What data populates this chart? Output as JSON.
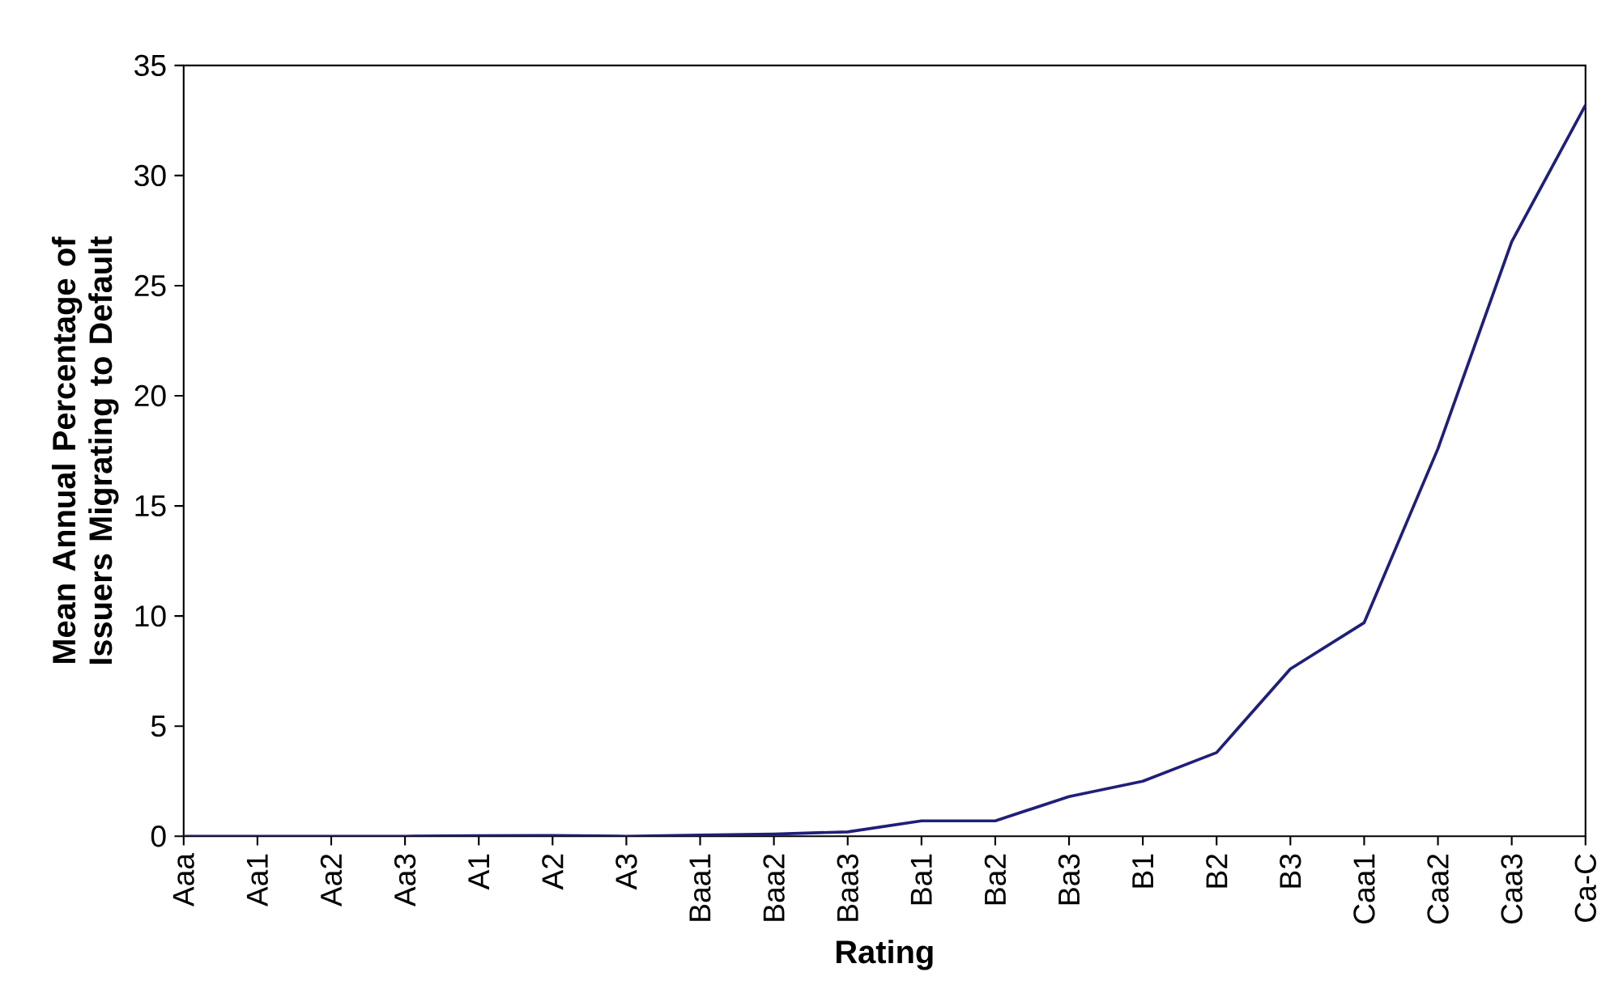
{
  "chart_data": {
    "type": "line",
    "xlabel": "Rating",
    "ylabel": "Mean Annual Percentage of Issuers Migrating to Default",
    "categories": [
      "Aaa",
      "Aa1",
      "Aa2",
      "Aa3",
      "A1",
      "A2",
      "A3",
      "Baa1",
      "Baa2",
      "Baa3",
      "Ba1",
      "Ba2",
      "Ba3",
      "B1",
      "B2",
      "B3",
      "Caa1",
      "Caa2",
      "Caa3",
      "Ca-C"
    ],
    "series": [
      {
        "color": "#1f1f7a",
        "values": [
          0,
          0,
          0,
          0,
          0.02,
          0.03,
          0,
          0.05,
          0.1,
          0.2,
          0.7,
          0.7,
          1.8,
          2.5,
          3.8,
          7.6,
          9.7,
          17.6,
          27.0,
          33.2
        ]
      }
    ],
    "ylim": [
      0,
      35
    ],
    "yticks": [
      0,
      5,
      10,
      15,
      20,
      25,
      30,
      35
    ],
    "marker": "none",
    "line_style": "solid"
  }
}
